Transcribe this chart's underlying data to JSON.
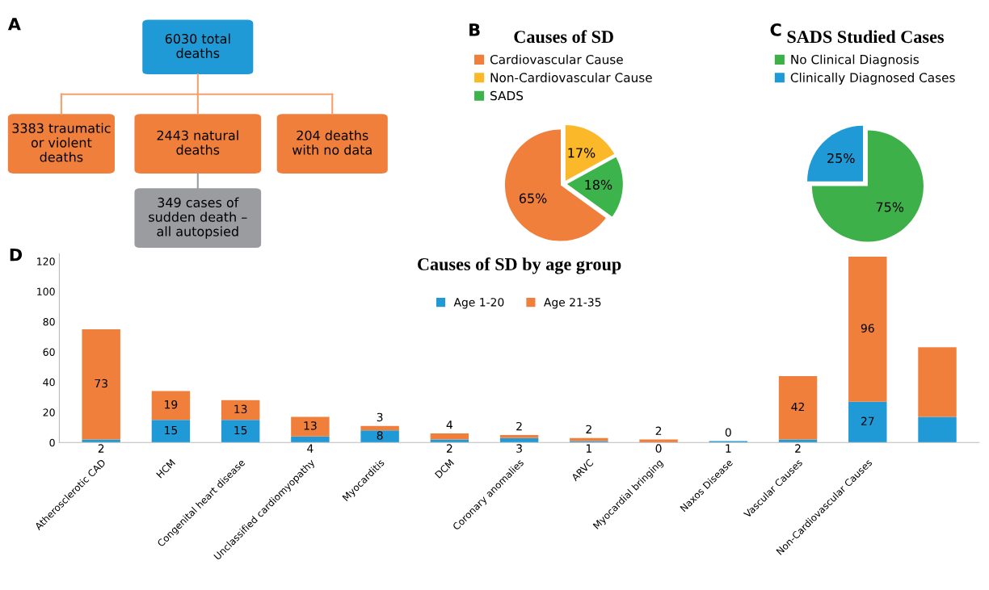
{
  "chart_data": [
    {
      "type": "other",
      "annotations": [
        "A",
        "6030 total\ndeaths",
        "3383 traumatic\nor violent\ndeaths",
        "2443 natural\ndeaths",
        "204 deaths\nwith no data",
        "349 cases of\nsudden death –\nall autopsied"
      ],
      "colors": [
        "#1f9ad6",
        "#f07f3c",
        "#f07f3c",
        "#f07f3c",
        "#9a9ca0"
      ]
    },
    {
      "type": "pie",
      "title": "Causes of SD",
      "annotations": [
        "B"
      ],
      "categories": [
        "Cardiovascular Cause",
        "Non-Cardiovascular Cause",
        "SADS"
      ],
      "values": [
        65,
        17,
        18
      ],
      "value_labels": [
        "65%",
        "17%",
        "18%"
      ],
      "colors": [
        "#f07f3c",
        "#fbb828",
        "#3cb44b"
      ],
      "legend": "top"
    },
    {
      "type": "pie",
      "title": "SADS Studied Cases",
      "annotations": [
        "C"
      ],
      "categories": [
        "No Clinical Diagnosis",
        "Clinically Diagnosed Cases"
      ],
      "values": [
        75,
        25
      ],
      "value_labels": [
        "75%",
        "25%"
      ],
      "colors": [
        "#3eb049",
        "#1f9ad6"
      ],
      "legend": "top"
    },
    {
      "type": "bar",
      "title": "Causes of SD by age group",
      "annotations": [
        "D"
      ],
      "stacked": true,
      "legend": "top",
      "grid": false,
      "categories": [
        "Atherosclerotic CAD",
        "HCM",
        "Congenital heart disease",
        "Unclassified cardiomyopathy",
        "Myocarditis",
        "DCM",
        "Coronary anomalies",
        "ARVC",
        "Myocardial bringing",
        "Naxos Disease",
        "Vascular Causes",
        "Non-Cardiovascular Causes",
        null
      ],
      "ylim": [
        0,
        125
      ],
      "yticks": [
        0,
        20,
        40,
        60,
        80,
        100,
        120
      ],
      "series": [
        {
          "name": "Age 1-20",
          "color": "#1f9ad6",
          "values": [
            2,
            15,
            15,
            4,
            8,
            2,
            3,
            1,
            0,
            1,
            2,
            27,
            17
          ],
          "value_labels": [
            "2",
            "15",
            "15",
            "4",
            "8",
            "2",
            "3",
            "1",
            "0",
            "1",
            "2",
            "27",
            null
          ]
        },
        {
          "name": "Age 21-35",
          "color": "#f07f3c",
          "values": [
            73,
            19,
            13,
            13,
            3,
            4,
            2,
            2,
            2,
            0,
            42,
            96,
            46
          ],
          "value_labels": [
            "73",
            "19",
            "13",
            "13",
            "3",
            "4",
            "2",
            "2",
            "2",
            "0",
            "42",
            "96",
            null
          ]
        }
      ]
    }
  ]
}
